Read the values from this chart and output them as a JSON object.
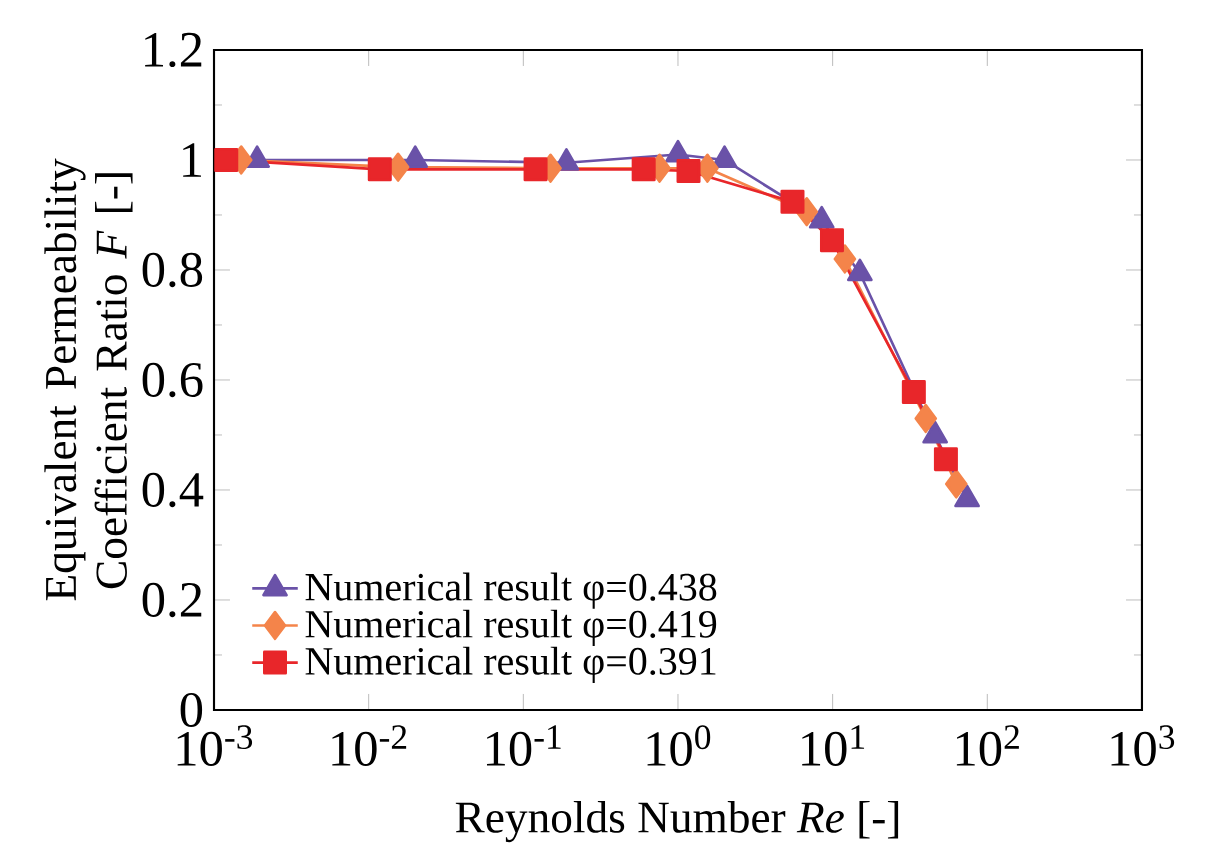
{
  "chart_data": {
    "type": "line",
    "xlabel": "Reynolds Number *Re* [-]",
    "ylabel": "Equivalent Permeability Coefficient Ratio *F* [-]",
    "log": "x",
    "xlim": [
      0.001,
      1000
    ],
    "ylim": [
      0,
      1.2
    ],
    "xticks": [
      {
        "value": 0.001,
        "label": "10$^{-3}$"
      },
      {
        "value": 0.01,
        "label": "10$^{-2}$"
      },
      {
        "value": 0.1,
        "label": "10$^{-1}$"
      },
      {
        "value": 1,
        "label": "10$^{0}$"
      },
      {
        "value": 10,
        "label": "10$^{1}$"
      },
      {
        "value": 100,
        "label": "10$^{2}$"
      },
      {
        "value": 1000,
        "label": "10$^{3}$"
      }
    ],
    "yticks": [
      0,
      0.2,
      0.4,
      0.6,
      0.8,
      1,
      1.2
    ],
    "legend": "bottom left",
    "grid": false,
    "line_style": "solid",
    "series": [
      {
        "name": "Numerical result φ=0.438",
        "color": "#6a52a8",
        "marker": "triangle",
        "x": [
          0.0019,
          0.02,
          0.19,
          1.0,
          2.0,
          8.5,
          15,
          46,
          74
        ],
        "values": [
          1.0,
          1.0,
          0.995,
          1.01,
          1.0,
          0.89,
          0.794,
          0.499,
          0.383
        ]
      },
      {
        "name": "Numerical result φ=0.419",
        "color": "#f4844a",
        "marker": "diamond",
        "x": [
          0.0015,
          0.0155,
          0.15,
          0.76,
          1.55,
          6.8,
          12,
          40,
          63
        ],
        "values": [
          1.0,
          0.987,
          0.985,
          0.985,
          0.985,
          0.906,
          0.82,
          0.53,
          0.411
        ]
      },
      {
        "name": "Numerical result φ=0.391",
        "color": "#e8262a",
        "marker": "square",
        "x": [
          0.0012,
          0.0118,
          0.12,
          0.6,
          1.17,
          5.5,
          9.9,
          33.5,
          54
        ],
        "values": [
          1.0,
          0.983,
          0.983,
          0.983,
          0.98,
          0.924,
          0.854,
          0.578,
          0.456
        ]
      }
    ]
  }
}
